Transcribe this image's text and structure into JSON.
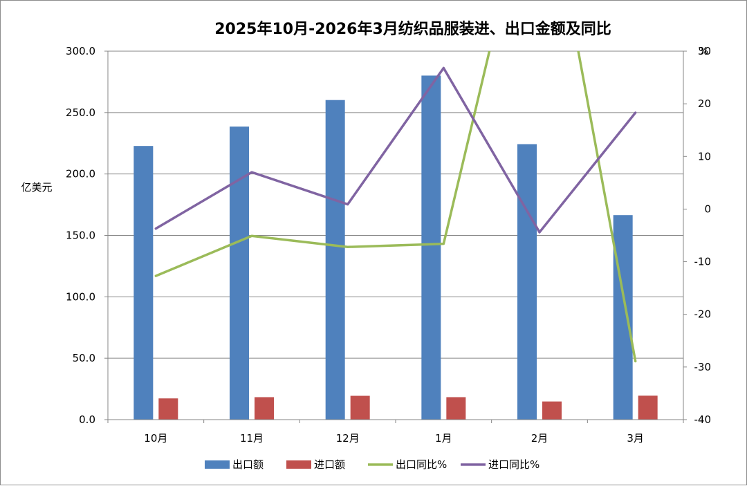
{
  "chart_data": {
    "type": "bar",
    "title": "2025年10月-2026年3月纺织品服装进、出口金额及同比",
    "categories": [
      "10月",
      "11月",
      "12月",
      "1月",
      "2月",
      "3月"
    ],
    "ylabel": "亿美元",
    "y2label": "%",
    "ylim": [
      0,
      300
    ],
    "y_ticks": [
      "0.0",
      "50.0",
      "100.0",
      "150.0",
      "200.0",
      "250.0",
      "300.0"
    ],
    "y2lim": [
      -40,
      30
    ],
    "y2_ticks": [
      "-40",
      "-30",
      "-20",
      "-10",
      "0",
      "10",
      "20",
      "30"
    ],
    "grid": "horizontal",
    "legend_position": "bottom",
    "series": [
      {
        "name": "出口额",
        "kind": "bar",
        "axis": "left",
        "color": "#4f81bd",
        "values": [
          222.8,
          238.6,
          260.2,
          280.1,
          224.3,
          166.5
        ]
      },
      {
        "name": "进口额",
        "kind": "bar",
        "axis": "left",
        "color": "#c0504d",
        "values": [
          17.3,
          18.3,
          19.4,
          18.3,
          14.8,
          19.5
        ]
      },
      {
        "name": "出口同比%",
        "kind": "line",
        "axis": "right",
        "color": "#9bbb59",
        "values": [
          -12.7,
          -5.1,
          -7.2,
          -6.6,
          70.0,
          -28.9
        ]
      },
      {
        "name": "进口同比%",
        "kind": "line",
        "axis": "right",
        "color": "#8064a2",
        "values": [
          -3.7,
          7.0,
          0.9,
          26.8,
          -4.4,
          18.3
        ]
      }
    ]
  }
}
